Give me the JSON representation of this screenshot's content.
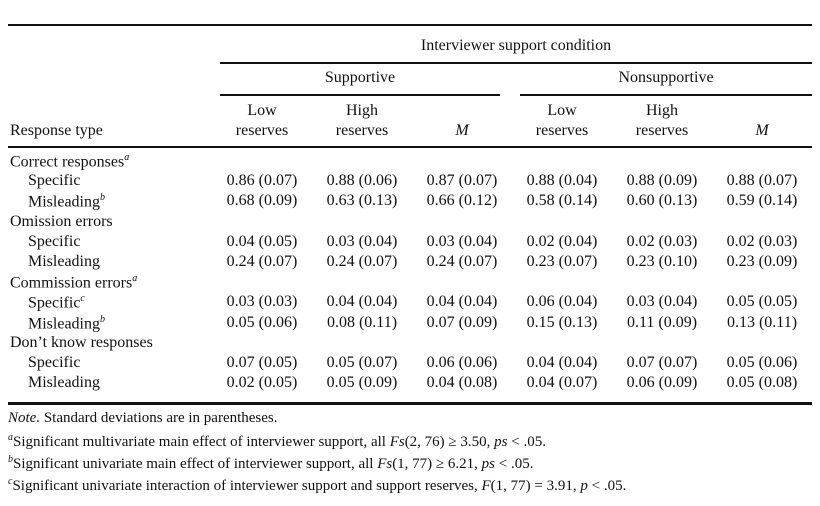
{
  "header": {
    "top": "Interviewer support condition",
    "group_supportive": "Supportive",
    "group_nonsupportive": "Nonsupportive",
    "stub": "Response type",
    "columns": [
      {
        "line1": "Low",
        "line2": "reserves"
      },
      {
        "line1": "High",
        "line2": "reserves"
      },
      {
        "line1": "",
        "line2": "M"
      },
      {
        "line1": "Low",
        "line2": "reserves"
      },
      {
        "line1": "High",
        "line2": "reserves"
      },
      {
        "line1": "",
        "line2": "M"
      }
    ]
  },
  "sections": [
    {
      "label": "Correct responses",
      "sup": "a",
      "rows": [
        {
          "label": "Specific",
          "sup": "",
          "values": [
            "0.86 (0.07)",
            "0.88 (0.06)",
            "0.87 (0.07)",
            "0.88 (0.04)",
            "0.88 (0.09)",
            "0.88 (0.07)"
          ]
        },
        {
          "label": "Misleading",
          "sup": "b",
          "values": [
            "0.68 (0.09)",
            "0.63 (0.13)",
            "0.66 (0.12)",
            "0.58 (0.14)",
            "0.60 (0.13)",
            "0.59 (0.14)"
          ]
        }
      ]
    },
    {
      "label": "Omission errors",
      "sup": "",
      "rows": [
        {
          "label": "Specific",
          "sup": "",
          "values": [
            "0.04 (0.05)",
            "0.03 (0.04)",
            "0.03 (0.04)",
            "0.02 (0.04)",
            "0.02 (0.03)",
            "0.02 (0.03)"
          ]
        },
        {
          "label": "Misleading",
          "sup": "",
          "values": [
            "0.24 (0.07)",
            "0.24 (0.07)",
            "0.24 (0.07)",
            "0.23 (0.07)",
            "0.23 (0.10)",
            "0.23 (0.09)"
          ]
        }
      ]
    },
    {
      "label": "Commission errors",
      "sup": "a",
      "rows": [
        {
          "label": "Specific",
          "sup": "c",
          "values": [
            "0.03 (0.03)",
            "0.04 (0.04)",
            "0.04 (0.04)",
            "0.06 (0.04)",
            "0.03 (0.04)",
            "0.05 (0.05)"
          ]
        },
        {
          "label": "Misleading",
          "sup": "b",
          "values": [
            "0.05 (0.06)",
            "0.08 (0.11)",
            "0.07 (0.09)",
            "0.15 (0.13)",
            "0.11 (0.09)",
            "0.13 (0.11)"
          ]
        }
      ]
    },
    {
      "label": "Don’t know responses",
      "sup": "",
      "rows": [
        {
          "label": "Specific",
          "sup": "",
          "values": [
            "0.07 (0.05)",
            "0.05 (0.07)",
            "0.06 (0.06)",
            "0.04 (0.04)",
            "0.07 (0.07)",
            "0.05 (0.06)"
          ]
        },
        {
          "label": "Misleading",
          "sup": "",
          "values": [
            "0.02 (0.05)",
            "0.05 (0.09)",
            "0.04 (0.08)",
            "0.04 (0.07)",
            "0.06 (0.09)",
            "0.05 (0.08)"
          ]
        }
      ]
    }
  ],
  "notes": {
    "note_label": "Note.",
    "note_text": " Standard deviations are in parentheses.",
    "a": {
      "mark": "a",
      "pre": "Significant multivariate main effect of interviewer support, all ",
      "stat": "Fs",
      "mid": "(2, 76) ≥ 3.50, ",
      "p": "ps",
      "post": " < .05."
    },
    "b": {
      "mark": "b",
      "pre": "Significant univariate main effect of interviewer support, all ",
      "stat": "Fs",
      "mid": "(1, 77) ≥ 6.21, ",
      "p": "ps",
      "post": " < .05."
    },
    "c": {
      "mark": "c",
      "pre": "Significant univariate interaction of interviewer support and support reserves, ",
      "stat": "F",
      "mid": "(1, 77) = 3.91, ",
      "p": "p",
      "post": " < .05."
    }
  }
}
